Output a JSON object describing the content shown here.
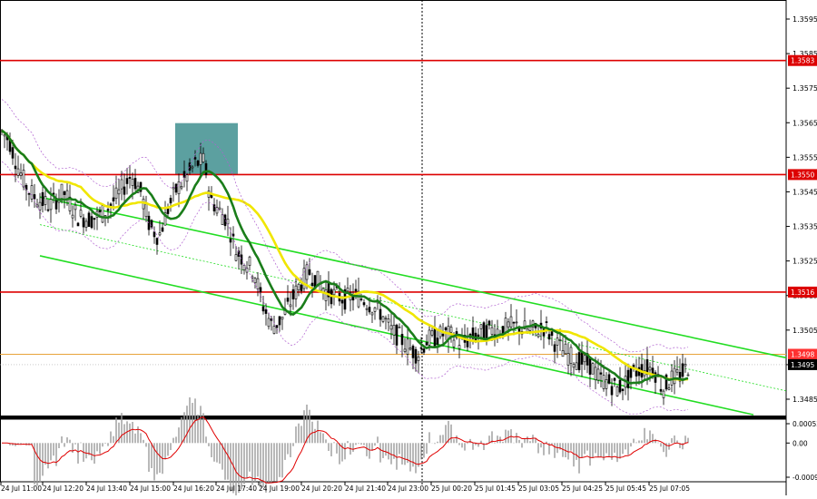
{
  "chart_data": {
    "type": "candlestick",
    "instrument_note": "",
    "price_axis": {
      "ticks": [
        "1.3595",
        "1.3585",
        "1.3575",
        "1.3565",
        "1.3555",
        "1.3545",
        "1.3535",
        "1.3525",
        "1.3515",
        "1.3505",
        "1.3495",
        "1.3485"
      ],
      "range": [
        1.3478,
        1.3602
      ]
    },
    "time_axis": {
      "labels": [
        "24 Jul 11:00",
        "24 Jul 12:20",
        "24 Jul 13:40",
        "24 Jul 15:00",
        "24 Jul 16:20",
        "24 Jul 17:40",
        "24 Jul 19:00",
        "24 Jul 20:20",
        "24 Jul 21:40",
        "24 Jul 23:00",
        "25 Jul 00:20",
        "25 Jul 01:45",
        "25 Jul 03:05",
        "25 Jul 04:25",
        "25 Jul 05:45",
        "25 Jul 07:05"
      ]
    },
    "levels": [
      {
        "label": "1.3583",
        "value": 1.3583,
        "color": "#dd0000"
      },
      {
        "label": "1.3550",
        "value": 1.355,
        "color": "#dd0000"
      },
      {
        "label": "1.3516",
        "value": 1.3516,
        "color": "#dd0000"
      },
      {
        "label": "1.3498",
        "value": 1.3498,
        "color": "#e8a33a"
      }
    ],
    "current_price": {
      "label": "1.3495",
      "value": 1.3495
    },
    "highlight_zone": {
      "from_price": 1.355,
      "to_price": 1.3562,
      "color": "#3f8f8f"
    },
    "moving_averages": [
      {
        "color": "#f0e600"
      },
      {
        "color": "#1a7d1a"
      }
    ],
    "channel_color": "#22dd22",
    "macd_axis": {
      "ticks": [
        "0.00052",
        "0.00",
        "-0.00092"
      ],
      "range": [
        -0.00092,
        0.00052
      ]
    }
  }
}
